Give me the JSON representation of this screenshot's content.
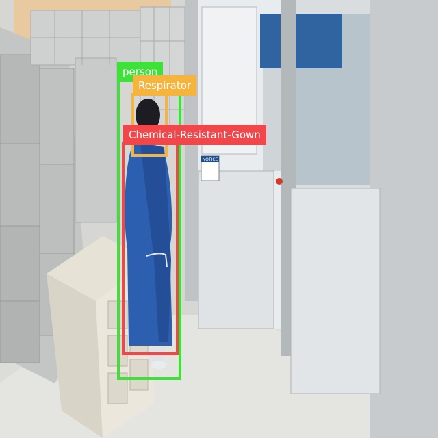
{
  "image": {
    "description_free": true
  },
  "detections": [
    {
      "label": "person",
      "color": "#3ee03a"
    },
    {
      "label": "Respirator",
      "color": "#f6b43c"
    },
    {
      "label": "Chemical-Resistant-Gown",
      "color": "#f2474a"
    }
  ],
  "notice_sign": {
    "text": "NOTICE"
  }
}
